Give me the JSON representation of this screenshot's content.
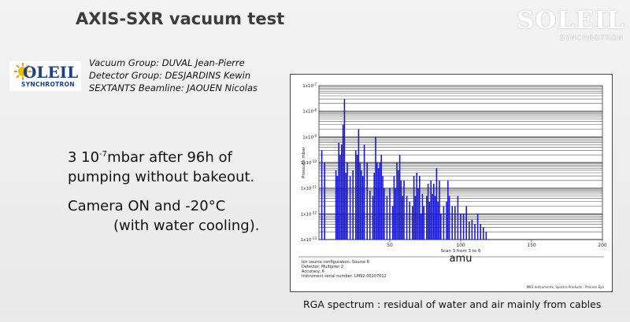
{
  "slide": {
    "title": "AXIS-SXR vacuum test",
    "logo_word": "SOLEIL",
    "logo_sub": "SYNCHROTRON",
    "groups": [
      "Vacuum Group: DUVAL Jean-Pierre",
      "Detector Group: DESJARDINS Kewin",
      "SEXTANTS Beamline: JAOUEN Nicolas"
    ],
    "pressure": {
      "prefix": "3 10",
      "exp": "-7",
      "suffix": "mbar after 96h of",
      "line2": "pumping without bakeout."
    },
    "camera": {
      "line1": "Camera ON and -20°C",
      "line2": "(with water cooling)."
    },
    "caption": "RGA spectrum : residual of water and air mainly from cables"
  },
  "chart_data": {
    "type": "bar",
    "ylabel": "Pressure mbar",
    "xlabel": "amu",
    "scan_label": "Scan 3 from 3 to 6",
    "y_scale": "log",
    "ylim": [
      1e-13,
      1e-07
    ],
    "xlim": [
      0,
      200
    ],
    "x_ticks": [
      "50",
      "100",
      "150",
      "200"
    ],
    "y_tick_exponents": [
      "-7",
      "-8",
      "-9",
      "-10",
      "-11",
      "-12",
      "-13"
    ],
    "grid": true,
    "x": [
      2,
      4,
      12,
      13,
      14,
      15,
      16,
      17,
      18,
      19,
      20,
      22,
      24,
      26,
      27,
      28,
      29,
      30,
      31,
      32,
      34,
      36,
      38,
      39,
      40,
      41,
      42,
      43,
      44,
      45,
      46,
      48,
      50,
      52,
      53,
      54,
      55,
      56,
      57,
      58,
      59,
      60,
      62,
      64,
      66,
      67,
      68,
      69,
      70,
      71,
      72,
      73,
      74,
      76,
      77,
      78,
      79,
      80,
      81,
      82,
      83,
      84,
      85,
      86,
      88,
      90,
      91,
      92,
      94,
      96,
      98,
      100,
      102,
      104,
      106,
      108,
      110,
      112,
      114,
      116,
      118
    ],
    "values": [
      3e-10,
      1e-10,
      5e-11,
      3e-11,
      6e-10,
      2e-10,
      5e-10,
      3e-09,
      3e-08,
      4e-11,
      1e-10,
      3e-11,
      5e-11,
      3e-10,
      2e-10,
      2e-09,
      1e-10,
      5e-11,
      3e-11,
      5e-10,
      1e-10,
      8e-12,
      5e-12,
      4e-11,
      1e-09,
      1e-10,
      6e-11,
      1e-10,
      2e-10,
      3e-11,
      1e-11,
      5e-12,
      1e-11,
      2e-12,
      3e-11,
      1e-11,
      1e-10,
      5e-11,
      2e-10,
      2e-11,
      5e-12,
      2e-11,
      5e-12,
      3e-12,
      2e-12,
      3e-11,
      5e-12,
      4e-11,
      1e-11,
      3e-11,
      1e-12,
      6e-12,
      2e-12,
      5e-12,
      1.5e-11,
      3e-12,
      2e-11,
      6e-12,
      1.5e-11,
      5e-12,
      6e-11,
      3e-12,
      2e-11,
      1e-12,
      2e-12,
      3e-12,
      2e-11,
      5e-12,
      2e-12,
      2e-12,
      5e-12,
      1e-12,
      1e-12,
      2e-12,
      5e-13,
      6e-13,
      4e-13,
      1e-12,
      4e-13,
      3e-13,
      2e-13
    ],
    "color": "#1a1ad6",
    "info_lines": [
      "Ion source configuration: Source 6",
      "Detector: Multiplier 2",
      "Accuracy: 6",
      "Instrument serial number: LM92-00207012"
    ],
    "footer": "MKS Instruments, Spectra Products - Process Eye"
  }
}
